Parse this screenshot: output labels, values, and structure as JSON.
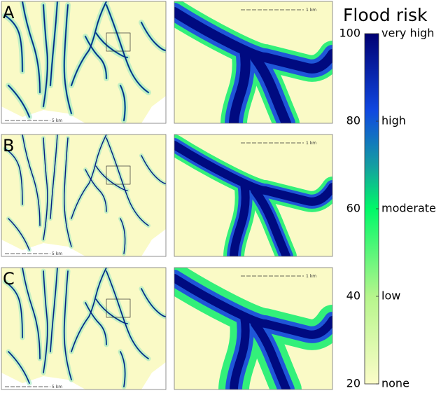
{
  "panels": [
    {
      "label": "A",
      "overview_scale": "5 km",
      "detail_scale": "1 km"
    },
    {
      "label": "B",
      "overview_scale": "5 km",
      "detail_scale": "1 km"
    },
    {
      "label": "C",
      "overview_scale": "5 km",
      "detail_scale": "1 km"
    }
  ],
  "colorbar": {
    "title": "Flood risk",
    "lim": [
      20,
      100
    ],
    "ticks": [
      20,
      40,
      60,
      80,
      100
    ],
    "tick_labels": [
      "none",
      "low",
      "moderate",
      "high",
      "very high"
    ]
  }
}
